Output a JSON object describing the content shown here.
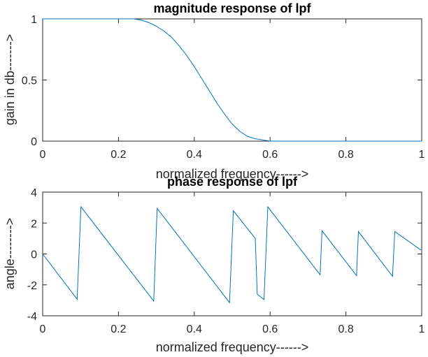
{
  "chart_data": [
    {
      "type": "line",
      "title": "magnitude response of lpf",
      "xlabel": "normalized frequency------>",
      "ylabel": "gain in db------->",
      "xlim": [
        0,
        1
      ],
      "ylim": [
        0,
        1
      ],
      "xticks": [
        "0",
        "0.2",
        "0.4",
        "0.6",
        "0.8",
        "1"
      ],
      "yticks": [
        "0",
        "0.5",
        "1"
      ],
      "grid": false,
      "color": "#0072bd",
      "series": [
        {
          "x": [
            0,
            0.1,
            0.2,
            0.24,
            0.26,
            0.28,
            0.3,
            0.32,
            0.34,
            0.36,
            0.38,
            0.4,
            0.42,
            0.44,
            0.46,
            0.48,
            0.5,
            0.52,
            0.54,
            0.56,
            0.6,
            0.8,
            1.0
          ],
          "y": [
            1,
            1,
            1,
            1,
            0.99,
            0.97,
            0.94,
            0.9,
            0.85,
            0.78,
            0.7,
            0.61,
            0.51,
            0.41,
            0.31,
            0.22,
            0.14,
            0.08,
            0.04,
            0.02,
            0.0,
            0.0,
            0.0
          ]
        }
      ]
    },
    {
      "type": "line",
      "title": "phase response of lpf",
      "xlabel": "normalized frequency------>",
      "ylabel": "angle-------->",
      "xlim": [
        0,
        1
      ],
      "ylim": [
        -4,
        4
      ],
      "xticks": [
        "0",
        "0.2",
        "0.4",
        "0.6",
        "0.8",
        "1"
      ],
      "yticks": [
        "-4",
        "-2",
        "0",
        "2",
        "4"
      ],
      "grid": false,
      "color": "#0072bd",
      "series": [
        {
          "x": [
            0,
            0.091,
            0.101,
            0.293,
            0.302,
            0.493,
            0.503,
            0.561,
            0.566,
            0.584,
            0.594,
            0.732,
            0.737,
            0.828,
            0.833,
            0.923,
            0.929,
            0.998
          ],
          "y": [
            0,
            -2.93,
            3.05,
            -3.05,
            2.95,
            -3.15,
            2.8,
            1.0,
            -2.6,
            -2.95,
            3.05,
            -1.35,
            1.5,
            -1.4,
            1.45,
            -1.45,
            1.45,
            0.25
          ]
        }
      ]
    }
  ]
}
